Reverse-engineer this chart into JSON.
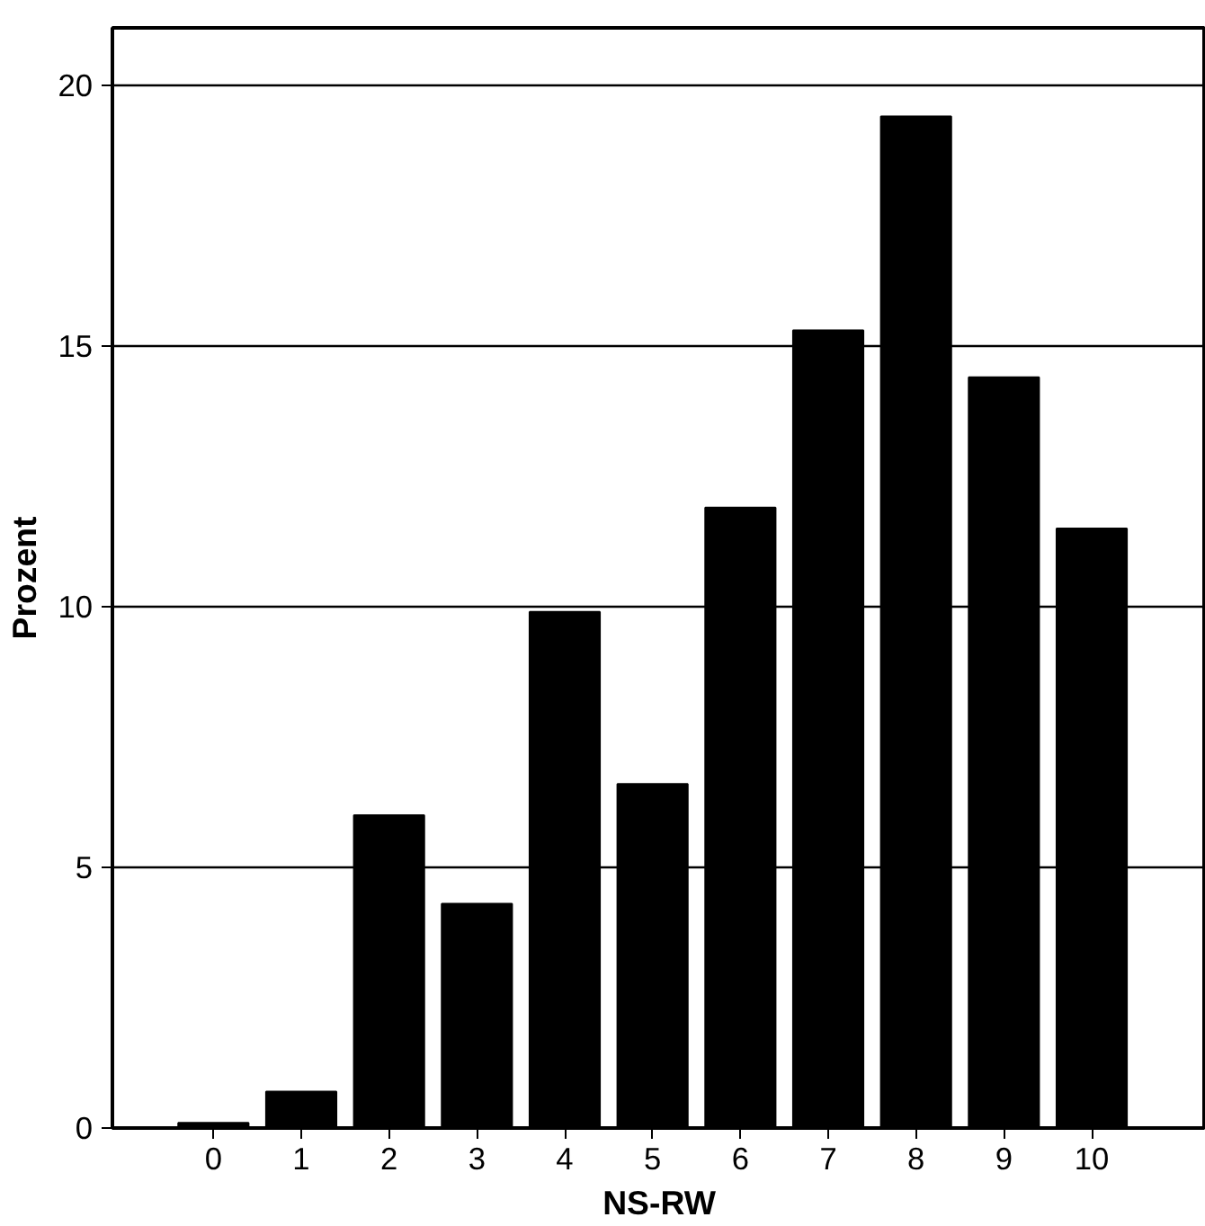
{
  "chart_data": {
    "type": "bar",
    "xlabel": "NS-RW",
    "ylabel": "Prozent",
    "categories": [
      "0",
      "1",
      "2",
      "3",
      "4",
      "5",
      "6",
      "7",
      "8",
      "9",
      "10"
    ],
    "values": [
      0.1,
      0.7,
      6.0,
      4.3,
      9.9,
      6.6,
      11.9,
      15.3,
      19.4,
      14.4,
      11.5
    ],
    "color": "#000000",
    "ylim": [
      0,
      21.1
    ],
    "yticks": [
      0,
      5,
      10,
      15,
      20
    ],
    "grid": "y"
  }
}
